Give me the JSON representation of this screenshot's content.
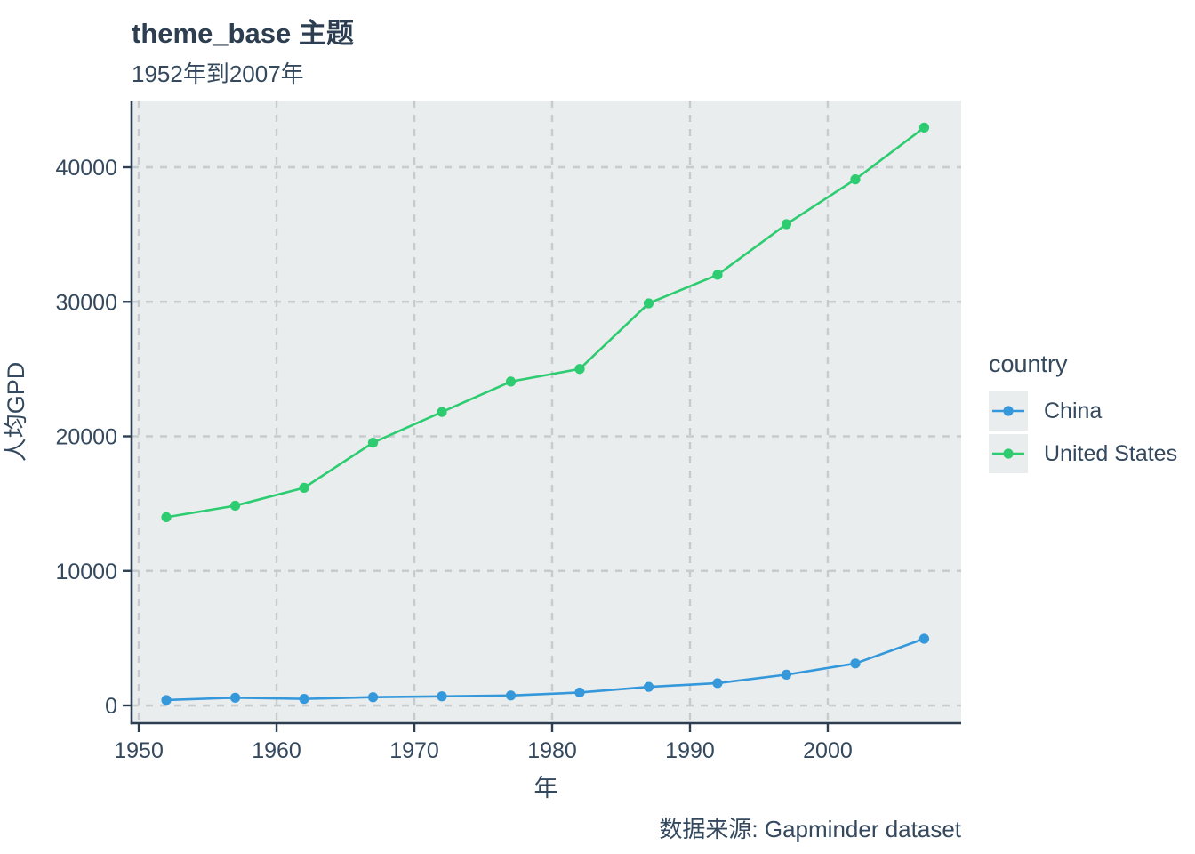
{
  "theme": {
    "title_color": "#2C3E50",
    "text_color": "#34495E",
    "axis_color": "#2C3E50",
    "panel_background": "#EAEDEE",
    "grid_color": "#C6CBCD",
    "legend_key_background": "#EAEDEE"
  },
  "chart_data": {
    "type": "line",
    "title": "theme_base 主题",
    "subtitle": "1952年到2007年",
    "xlabel": "年",
    "ylabel": "人均GPD",
    "caption": "数据来源: Gapminder dataset",
    "legend_title": "country",
    "legend_position": "right",
    "grid": "dashed-major-both",
    "x": [
      1952,
      1957,
      1962,
      1967,
      1972,
      1977,
      1982,
      1987,
      1992,
      1997,
      2002,
      2007
    ],
    "series": [
      {
        "name": "China",
        "color": "#3498DB",
        "values": [
          400.4,
          576.0,
          488.0,
          613.0,
          676.9,
          741.2,
          962.4,
          1378.9,
          1655.8,
          2289.2,
          3119.3,
          4959.1
        ]
      },
      {
        "name": "United States",
        "color": "#2ECC71",
        "values": [
          13990.5,
          14847.1,
          16173.1,
          19530.4,
          21806.0,
          24072.6,
          25009.6,
          29884.4,
          32003.9,
          35767.4,
          39097.1,
          42951.7
        ]
      }
    ],
    "xticks": [
      1950,
      1960,
      1970,
      1980,
      1990,
      2000
    ],
    "yticks": [
      0,
      10000,
      20000,
      30000,
      40000
    ],
    "xlim": [
      1949.48,
      2009.68
    ],
    "ylim": [
      -1322,
      44959
    ]
  }
}
